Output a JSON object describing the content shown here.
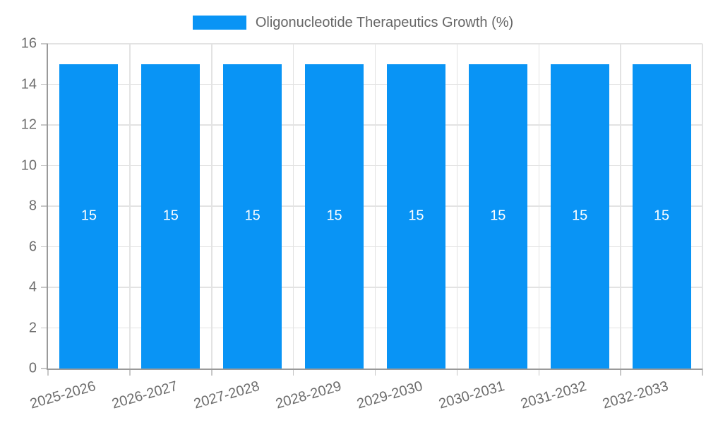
{
  "chart_data": {
    "type": "bar",
    "title": "",
    "series_name": "Oligonucleotide Therapeutics Growth (%)",
    "categories": [
      "2025-2026",
      "2026-2027",
      "2027-2028",
      "2028-2029",
      "2029-2030",
      "2030-2031",
      "2031-2032",
      "2032-2033"
    ],
    "values": [
      15,
      15,
      15,
      15,
      15,
      15,
      15,
      15
    ],
    "data_labels": [
      "15",
      "15",
      "15",
      "15",
      "15",
      "15",
      "15",
      "15"
    ],
    "xlabel": "",
    "ylabel": "",
    "ylim": [
      0,
      16
    ],
    "yticks": [
      0,
      2,
      4,
      6,
      8,
      10,
      12,
      14,
      16
    ],
    "grid": true,
    "legend_position": "top-center",
    "x_label_rotation_deg": -16
  },
  "colors": {
    "bar": "#0994F5",
    "grid": "#e3e3e3",
    "axis_line": "#9a9a9a",
    "tick_mark": "#c7c7c7",
    "tick_text": "#6d6d6d",
    "legend_text": "#666666",
    "bar_label_text": "#ffffff",
    "background": "#ffffff"
  }
}
